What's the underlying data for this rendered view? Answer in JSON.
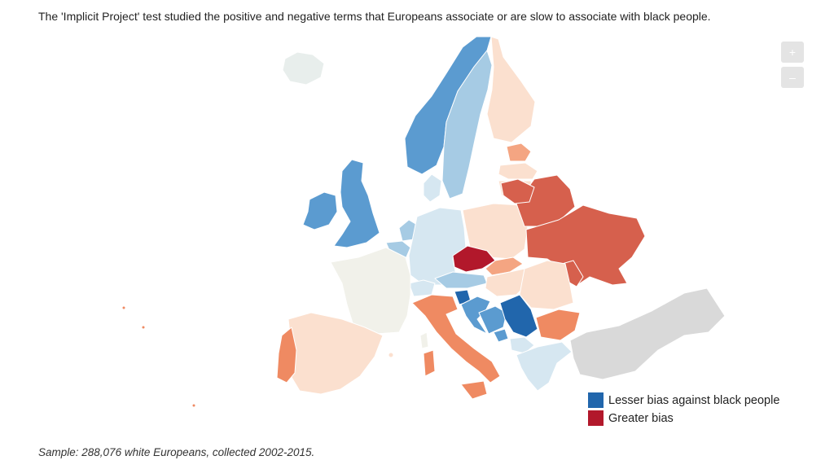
{
  "headline": "The 'Implicit Project' test studied the positive and negative terms that Europeans associate or are slow to associate with black people.",
  "zoom": {
    "in_label": "+",
    "out_label": "–"
  },
  "legend": [
    {
      "label": "Lesser bias against black people",
      "color": "#2166ac"
    },
    {
      "label": "Greater bias",
      "color": "#b2182b"
    }
  ],
  "footnote": "Sample: 288,076 white Europeans, collected 2002-2015.",
  "palette": {
    "strong_blue": "#2166ac",
    "mid_blue": "#5b9bd0",
    "light_blue": "#a6cbe4",
    "pale_blue": "#d6e7f1",
    "neutral": "#f1f1ea",
    "pale_peach": "#fbe0cf",
    "peach": "#f4a582",
    "salmon": "#ef8a62",
    "red": "#d6604d",
    "dark_red": "#b2182b",
    "no_data": "#d9d9d9"
  }
}
